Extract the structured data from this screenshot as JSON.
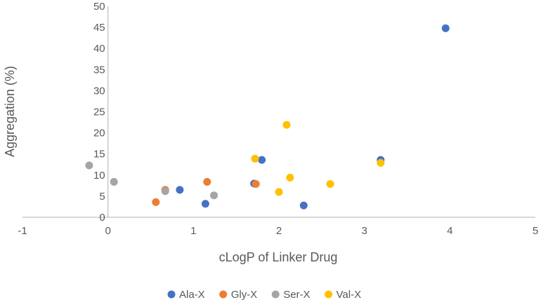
{
  "chart_data": {
    "type": "scatter",
    "title": "",
    "xlabel": "cLogP of Linker Drug",
    "ylabel": "Aggregation (%)",
    "xlim": [
      -1,
      5
    ],
    "ylim": [
      0,
      50
    ],
    "x_ticks": [
      -1,
      0,
      1,
      2,
      3,
      4,
      5
    ],
    "y_ticks": [
      0,
      5,
      10,
      15,
      20,
      25,
      30,
      35,
      40,
      45,
      50
    ],
    "grid": false,
    "legend_position": "bottom",
    "series": [
      {
        "name": "Ala-X",
        "color": "#4472C4",
        "points": [
          {
            "x": 0.84,
            "y": 6.5
          },
          {
            "x": 1.14,
            "y": 3.2
          },
          {
            "x": 1.71,
            "y": 8.0
          },
          {
            "x": 1.8,
            "y": 13.6
          },
          {
            "x": 2.29,
            "y": 2.8
          },
          {
            "x": 3.19,
            "y": 13.6
          },
          {
            "x": 3.95,
            "y": 44.8
          }
        ]
      },
      {
        "name": "Gly-X",
        "color": "#ED7D31",
        "points": [
          {
            "x": 0.56,
            "y": 3.6
          },
          {
            "x": 0.67,
            "y": 6.5
          },
          {
            "x": 1.16,
            "y": 8.4
          },
          {
            "x": 1.73,
            "y": 7.9
          }
        ]
      },
      {
        "name": "Ser-X",
        "color": "#A5A5A5",
        "points": [
          {
            "x": -0.22,
            "y": 12.3
          },
          {
            "x": 0.07,
            "y": 8.4
          },
          {
            "x": 0.67,
            "y": 6.2
          },
          {
            "x": 1.24,
            "y": 5.2
          }
        ]
      },
      {
        "name": "Val-X",
        "color": "#FFC000",
        "points": [
          {
            "x": 1.72,
            "y": 13.9
          },
          {
            "x": 2.0,
            "y": 6.0
          },
          {
            "x": 2.09,
            "y": 21.9
          },
          {
            "x": 2.13,
            "y": 9.4
          },
          {
            "x": 2.6,
            "y": 7.9
          },
          {
            "x": 3.19,
            "y": 12.9
          }
        ]
      }
    ]
  }
}
